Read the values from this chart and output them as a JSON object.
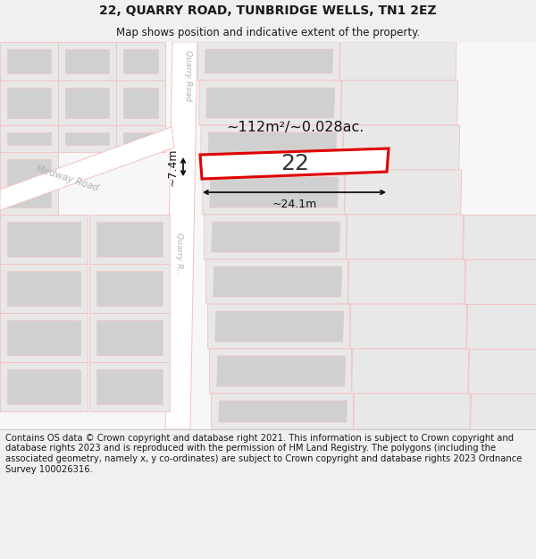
{
  "title": "22, QUARRY ROAD, TUNBRIDGE WELLS, TN1 2EZ",
  "subtitle": "Map shows position and indicative extent of the property.",
  "footer": "Contains OS data © Crown copyright and database right 2021. This information is subject to Crown copyright and database rights 2023 and is reproduced with the permission of HM Land Registry. The polygons (including the associated geometry, namely x, y co-ordinates) are subject to Crown copyright and database rights 2023 Ordnance Survey 100026316.",
  "area_label": "~112m²/~0.028ac.",
  "width_label": "~24.1m",
  "height_label": "~7.4m",
  "property_number": "22",
  "bg_color": "#f0f0f0",
  "map_bg": "#ffffff",
  "road_color": "#f5c0c0",
  "building_outer": "#e8e8e8",
  "building_inner": "#d0d0d0",
  "property_fill": "#ffffff",
  "property_stroke": "#e00000",
  "title_fontsize": 10,
  "subtitle_fontsize": 8.5,
  "footer_fontsize": 7.2,
  "road_label_color": "#b0b0b0",
  "annotation_color": "#111111"
}
